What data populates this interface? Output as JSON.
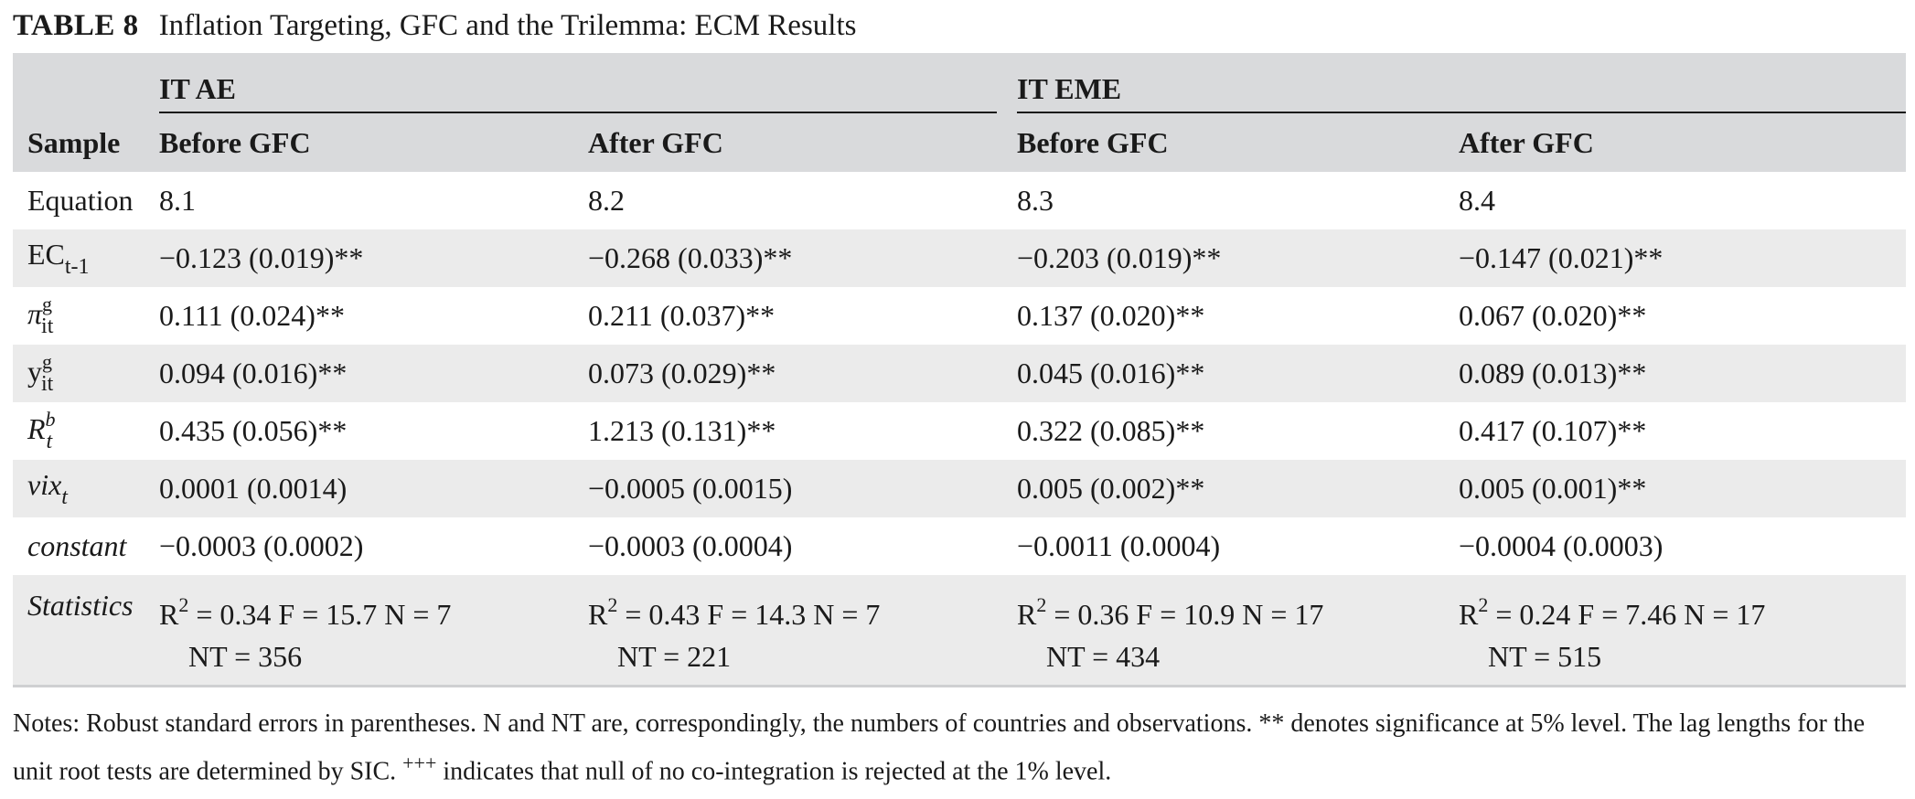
{
  "table": {
    "label": "TABLE 8",
    "title": "Inflation Targeting, GFC and the Trilemma: ECM Results",
    "header": {
      "group1": "IT AE",
      "group2": "IT EME",
      "sample_label": "Sample",
      "col1": "Before GFC",
      "col2": "After GFC",
      "col3": "Before GFC",
      "col4": "After GFC"
    },
    "rows": [
      {
        "label": "Equation",
        "cells": [
          "8.1",
          "8.2",
          "8.3",
          "8.4"
        ]
      },
      {
        "label_main": "EC",
        "label_sub": "t-1",
        "cells": [
          "−0.123 (0.019)**",
          "−0.268 (0.033)**",
          "−0.203 (0.019)**",
          "−0.147 (0.021)**"
        ]
      },
      {
        "label_main": "π",
        "label_sup": "g",
        "label_sub": "it",
        "cells": [
          "0.111 (0.024)**",
          "0.211 (0.037)**",
          "0.137 (0.020)**",
          "0.067 (0.020)**"
        ]
      },
      {
        "label_main": "y",
        "label_sup": "g",
        "label_sub": "it",
        "cells": [
          "0.094 (0.016)**",
          "0.073 (0.029)**",
          "0.045 (0.016)**",
          "0.089 (0.013)**"
        ]
      },
      {
        "label_main": "R",
        "label_sup": "b",
        "label_sub": "t",
        "cells": [
          "0.435 (0.056)**",
          "1.213 (0.131)**",
          "0.322 (0.085)**",
          "0.417 (0.107)**"
        ]
      },
      {
        "label_main": "vix",
        "label_sub": "t",
        "cells": [
          "0.0001 (0.0014)",
          "−0.0005 (0.0015)",
          "0.005 (0.002)**",
          "0.005 (0.001)**"
        ]
      },
      {
        "label": "constant",
        "cells": [
          "−0.0003 (0.0002)",
          "−0.0003 (0.0004)",
          "−0.0011 (0.0004)",
          "−0.0004 (0.0003)"
        ]
      }
    ],
    "statistics": {
      "label": "Statistics",
      "r_prefix": "R",
      "r_sup": "2",
      "cells": [
        {
          "line1": " = 0.34 F = 15.7 N = 7",
          "line2": "NT = 356"
        },
        {
          "line1": " = 0.43 F = 14.3 N = 7",
          "line2": "NT = 221"
        },
        {
          "line1": " = 0.36 F = 10.9 N = 17",
          "line2": "NT = 434"
        },
        {
          "line1": " = 0.24 F = 7.46 N = 17",
          "line2": "NT = 515"
        }
      ]
    },
    "notes": {
      "part1": "Notes: Robust standard errors in parentheses. N and NT are, correspondingly, the numbers of countries and observations. ** denotes significance at 5% level. The lag lengths for the unit root tests are determined by SIC. ",
      "sup": "+++",
      "part2": " indicates that null of no co-integration is rejected at the 1% level."
    }
  }
}
